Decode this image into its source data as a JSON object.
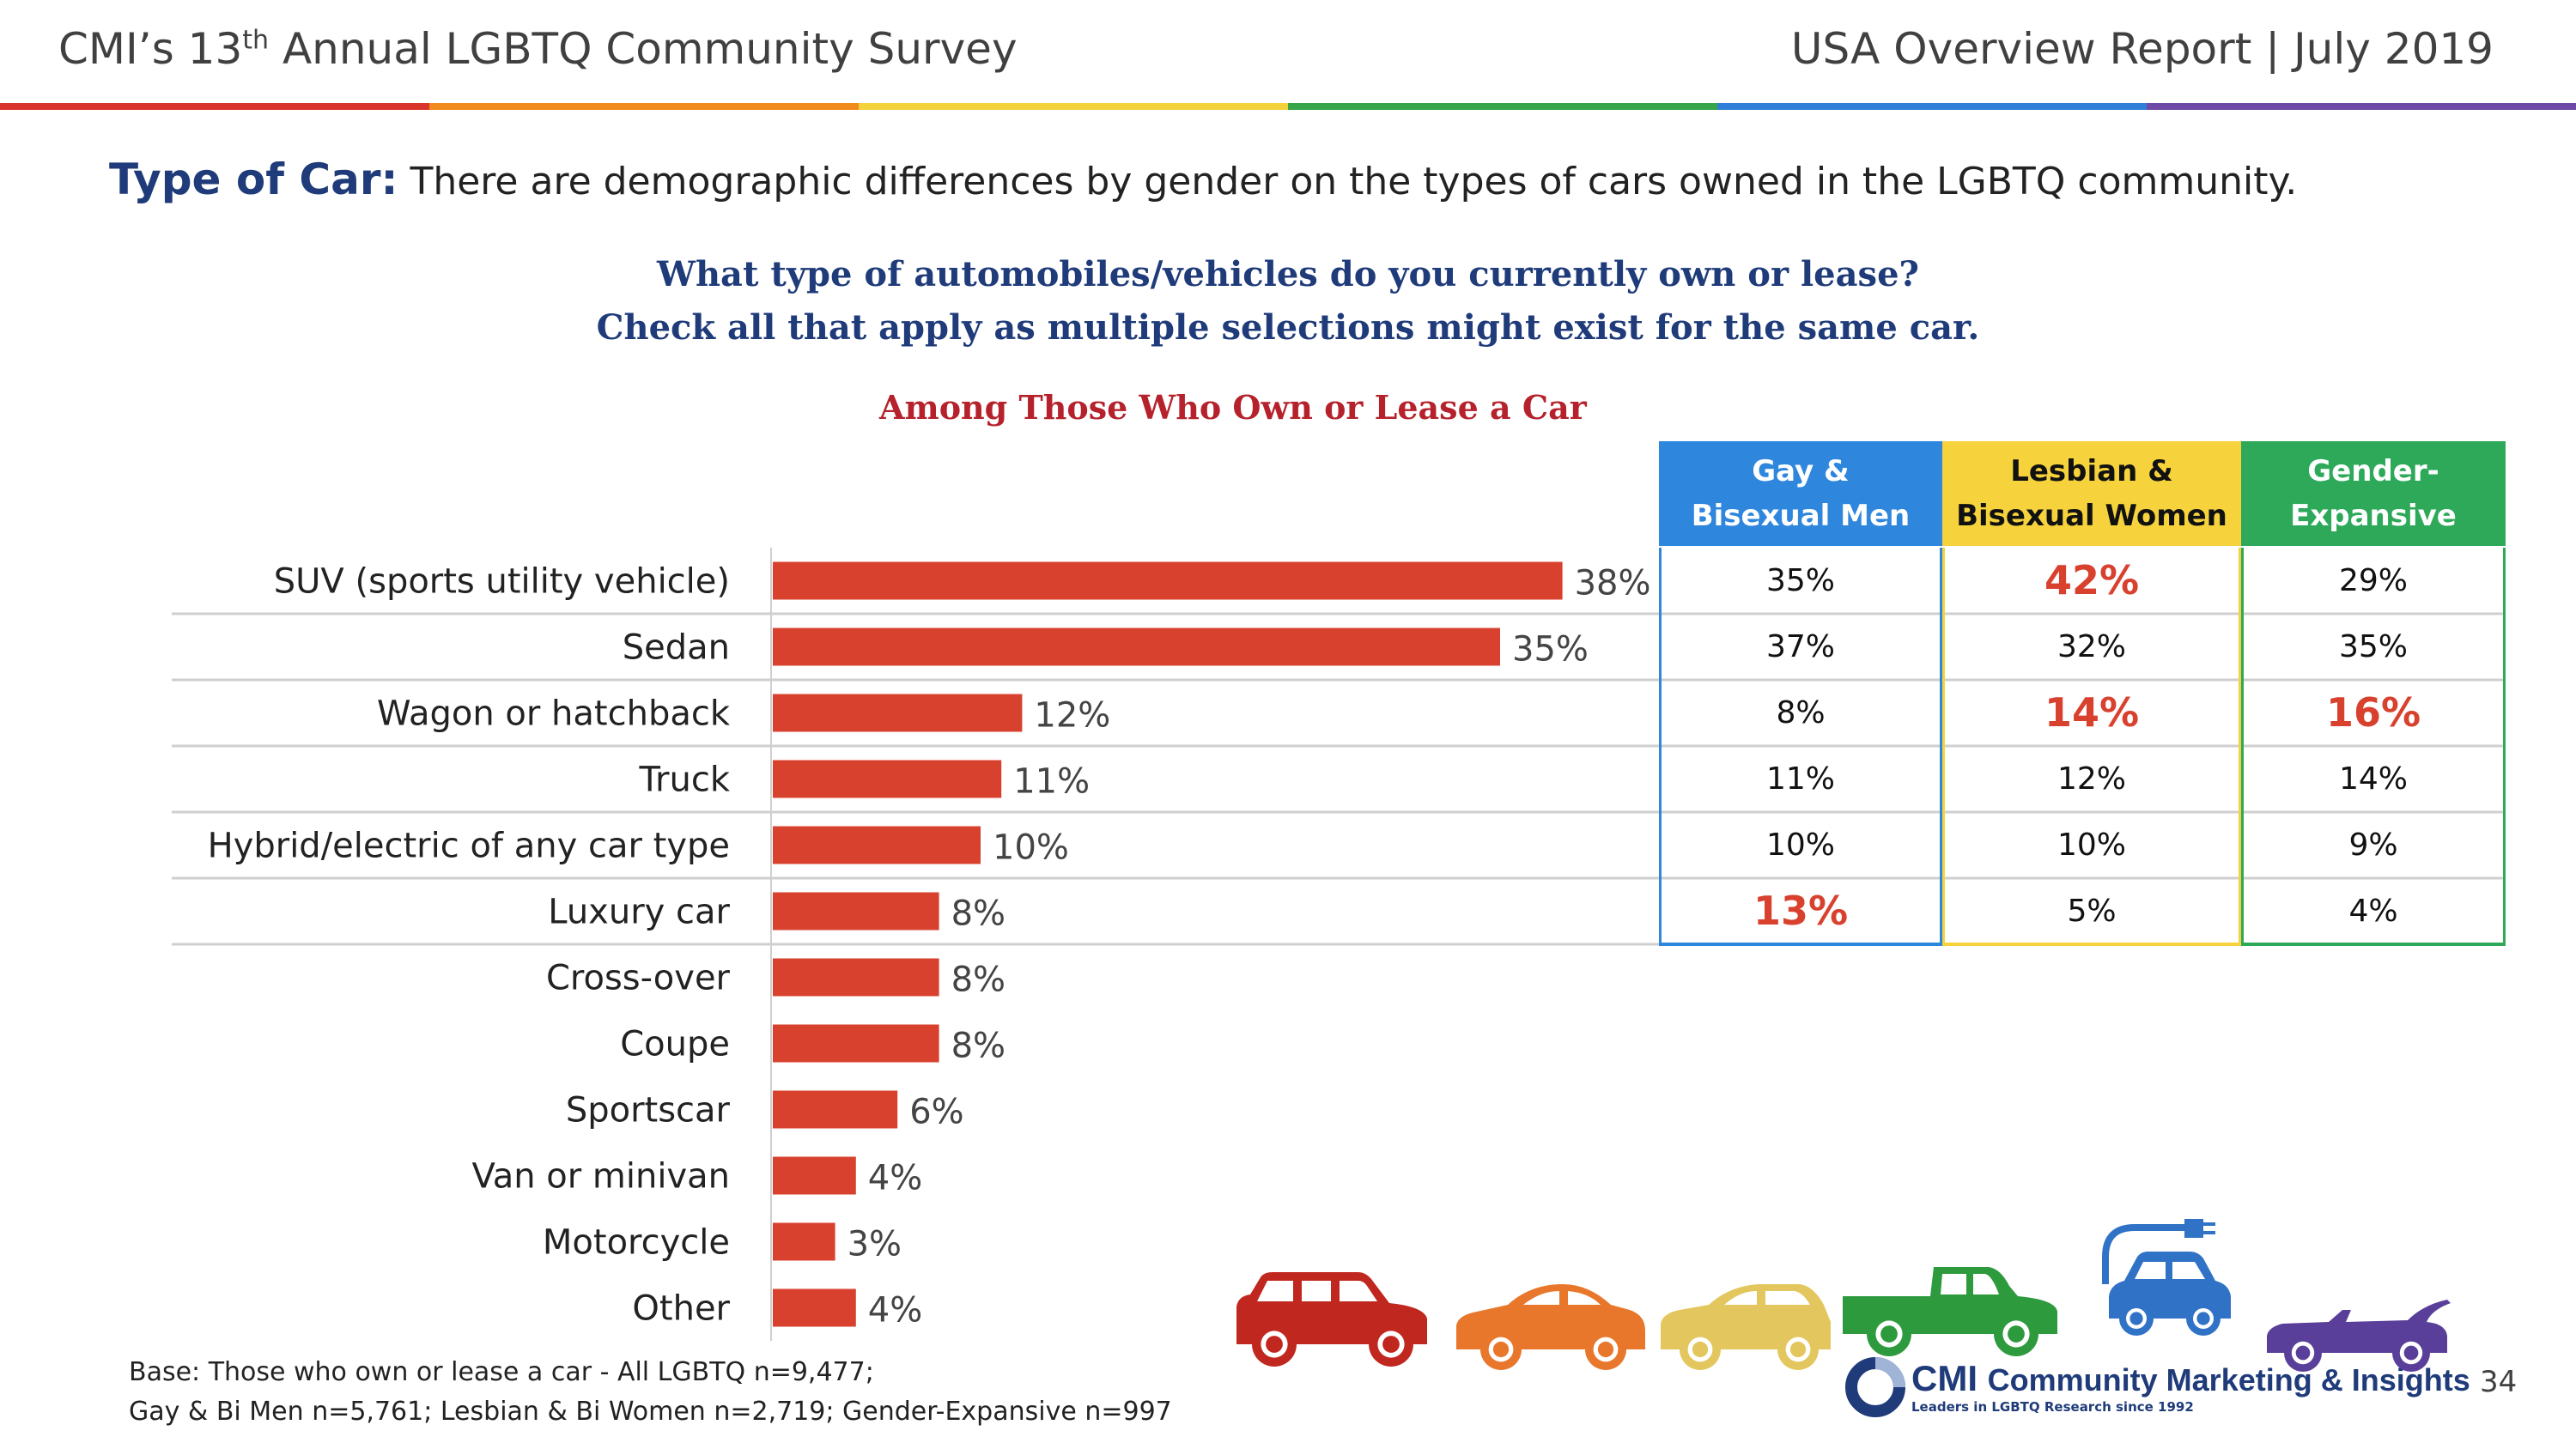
{
  "header": {
    "survey_prefix": "CMI’s 13",
    "survey_sup": "th",
    "survey_suffix": " Annual LGBTQ Community Survey",
    "report": "USA Overview Report | July 2019"
  },
  "rainbow_colors": [
    "#d9342b",
    "#f08a1c",
    "#f3d23c",
    "#37a64a",
    "#2f7fd8",
    "#6e4aa6"
  ],
  "topic": {
    "label": "Type of Car:",
    "text": " There are demographic differences by gender on the types of cars owned in the LGBTQ community."
  },
  "question": {
    "line1": "What type of automobiles/vehicles do you currently own or lease?",
    "line2": "Check all that apply as multiple selections might exist for the same car."
  },
  "subhead": "Among Those Who Own or Lease a Car",
  "chart_data": {
    "type": "bar",
    "orientation": "horizontal",
    "categories": [
      "SUV (sports utility vehicle)",
      "Sedan",
      "Wagon or hatchback",
      "Truck",
      "Hybrid/electric of any car type",
      "Luxury car",
      "Cross-over",
      "Coupe",
      "Sportscar",
      "Van or minivan",
      "Motorcycle",
      "Other"
    ],
    "values": [
      38,
      35,
      12,
      11,
      10,
      8,
      8,
      8,
      6,
      4,
      3,
      4
    ],
    "value_labels": [
      "38%",
      "35%",
      "12%",
      "11%",
      "10%",
      "8%",
      "8%",
      "8%",
      "6%",
      "4%",
      "3%",
      "4%"
    ],
    "unit": "%",
    "bar_color": "#d9412f"
  },
  "table": {
    "columns": [
      {
        "line1": "Gay &",
        "line2": "Bisexual Men",
        "color": "#2f86dd"
      },
      {
        "line1": "Lesbian &",
        "line2": "Bisexual Women",
        "color": "#f6d33c"
      },
      {
        "line1": "Gender-",
        "line2": "Expansive",
        "color": "#2ea95a"
      }
    ],
    "rows": [
      {
        "category": "SUV (sports utility vehicle)",
        "values": [
          "35%",
          "42%",
          "29%"
        ],
        "highlight": [
          false,
          true,
          false
        ]
      },
      {
        "category": "Sedan",
        "values": [
          "37%",
          "32%",
          "35%"
        ],
        "highlight": [
          false,
          false,
          false
        ]
      },
      {
        "category": "Wagon or hatchback",
        "values": [
          "8%",
          "14%",
          "16%"
        ],
        "highlight": [
          false,
          true,
          true
        ]
      },
      {
        "category": "Truck",
        "values": [
          "11%",
          "12%",
          "14%"
        ],
        "highlight": [
          false,
          false,
          false
        ]
      },
      {
        "category": "Hybrid/electric of any car type",
        "values": [
          "10%",
          "10%",
          "9%"
        ],
        "highlight": [
          false,
          false,
          false
        ]
      },
      {
        "category": "Luxury car",
        "values": [
          "13%",
          "5%",
          "4%"
        ],
        "highlight": [
          true,
          false,
          false
        ]
      }
    ],
    "highlight_color": "#d9412f"
  },
  "car_icons": [
    {
      "name": "suv-icon",
      "color": "#c0271f"
    },
    {
      "name": "sedan-icon",
      "color": "#e8772b"
    },
    {
      "name": "hatchback-icon",
      "color": "#e3c75e"
    },
    {
      "name": "truck-icon",
      "color": "#2e9a3e"
    },
    {
      "name": "electric-car-icon",
      "color": "#2f72c6"
    },
    {
      "name": "convertible-icon",
      "color": "#5a3f9a"
    }
  ],
  "footnote": {
    "line1": "Base: Those who own or lease a car - All LGBTQ n=9,477;",
    "line2": "Gay & Bi Men n=5,761; Lesbian & Bi Women n=2,719; Gender-Expansive n=997"
  },
  "logo": {
    "brand": "CMI",
    "name": "Community Marketing & Insights",
    "tagline": "Leaders in LGBTQ Research since 1992"
  },
  "page_number": "34"
}
